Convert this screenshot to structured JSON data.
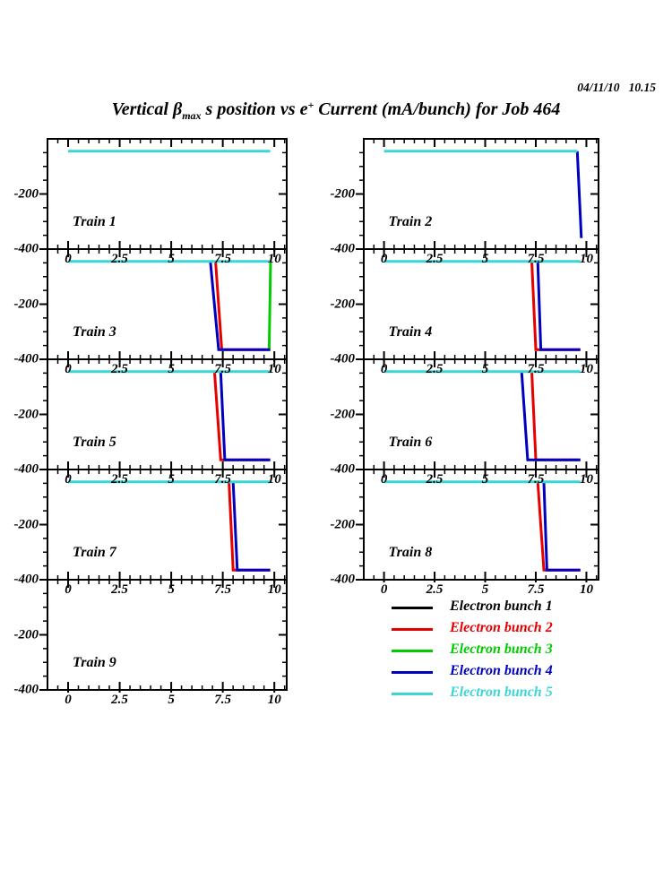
{
  "header": {
    "timestamp": "04/11/10   10.15",
    "title": {
      "part1": "Vertical β",
      "sub": "max",
      "part2": " s position vs e",
      "sup": "+",
      "part3": " Current (mA/bunch) for Job 464"
    }
  },
  "legend": {
    "items": [
      {
        "label": "Electron bunch 1",
        "color": "#000000"
      },
      {
        "label": "Electron bunch 2",
        "color": "#e60000"
      },
      {
        "label": "Electron bunch 3",
        "color": "#00cc00"
      },
      {
        "label": "Electron bunch 4",
        "color": "#0000bf"
      },
      {
        "label": "Electron bunch 5",
        "color": "#3ad6d6"
      }
    ]
  },
  "chart_data": {
    "type": "line",
    "title": "Vertical β_max s position vs e+ Current (mA/bunch) for Job 464",
    "layout": "grid of 9 stacked train panels (2 columns x 5 rows), legend in last cell",
    "x_ticks": [
      0,
      2.5,
      5,
      7.5,
      10
    ],
    "y_ticks": [
      -200,
      -400
    ],
    "xlim": [
      -1.0,
      10.6
    ],
    "ylim": [
      -400,
      0
    ],
    "x_minor_step": 0.5,
    "y_minor_step": 50,
    "grid": false,
    "series_colors": {
      "bunch1": "#000000",
      "bunch2": "#e60000",
      "bunch3": "#00cc00",
      "bunch4": "#0000bf",
      "bunch5": "#3ad6d6"
    },
    "panels": [
      {
        "label": "Train 1",
        "series": [
          {
            "name": "Electron bunch 5",
            "color": "bunch5",
            "points": [
              [
                0,
                -45
              ],
              [
                9.8,
                -45
              ]
            ]
          }
        ]
      },
      {
        "label": "Train 2",
        "series": [
          {
            "name": "Electron bunch 4",
            "color": "bunch4",
            "points": [
              [
                9.55,
                -45
              ],
              [
                9.75,
                -360
              ]
            ]
          },
          {
            "name": "Electron bunch 5",
            "color": "bunch5",
            "points": [
              [
                0,
                -45
              ],
              [
                9.55,
                -45
              ]
            ]
          }
        ]
      },
      {
        "label": "Train 3",
        "series": [
          {
            "name": "Electron bunch 2",
            "color": "bunch2",
            "points": [
              [
                7.15,
                -45
              ],
              [
                7.45,
                -365
              ],
              [
                9.8,
                -365
              ]
            ]
          },
          {
            "name": "Electron bunch 3",
            "color": "bunch3",
            "points": [
              [
                9.82,
                -45
              ],
              [
                9.75,
                -365
              ]
            ]
          },
          {
            "name": "Electron bunch 4",
            "color": "bunch4",
            "points": [
              [
                6.9,
                -45
              ],
              [
                7.3,
                -365
              ],
              [
                9.8,
                -365
              ]
            ]
          },
          {
            "name": "Electron bunch 5",
            "color": "bunch5",
            "points": [
              [
                0,
                -45
              ],
              [
                9.8,
                -45
              ]
            ]
          }
        ]
      },
      {
        "label": "Train 4",
        "series": [
          {
            "name": "Electron bunch 2",
            "color": "bunch2",
            "points": [
              [
                7.3,
                -45
              ],
              [
                7.5,
                -365
              ],
              [
                9.7,
                -365
              ]
            ]
          },
          {
            "name": "Electron bunch 4",
            "color": "bunch4",
            "points": [
              [
                7.6,
                -45
              ],
              [
                7.75,
                -365
              ],
              [
                9.7,
                -365
              ]
            ]
          },
          {
            "name": "Electron bunch 5",
            "color": "bunch5",
            "points": [
              [
                0,
                -45
              ],
              [
                9.7,
                -45
              ]
            ]
          }
        ]
      },
      {
        "label": "Train 5",
        "series": [
          {
            "name": "Electron bunch 2",
            "color": "bunch2",
            "points": [
              [
                7.1,
                -45
              ],
              [
                7.4,
                -365
              ],
              [
                9.8,
                -365
              ]
            ]
          },
          {
            "name": "Electron bunch 4",
            "color": "bunch4",
            "points": [
              [
                7.4,
                -45
              ],
              [
                7.6,
                -365
              ],
              [
                9.8,
                -365
              ]
            ]
          },
          {
            "name": "Electron bunch 5",
            "color": "bunch5",
            "points": [
              [
                0,
                -45
              ],
              [
                9.8,
                -45
              ]
            ]
          }
        ]
      },
      {
        "label": "Train 6",
        "series": [
          {
            "name": "Electron bunch 2",
            "color": "bunch2",
            "points": [
              [
                7.3,
                -45
              ],
              [
                7.5,
                -365
              ],
              [
                9.7,
                -365
              ]
            ]
          },
          {
            "name": "Electron bunch 4",
            "color": "bunch4",
            "points": [
              [
                6.8,
                -45
              ],
              [
                7.1,
                -365
              ],
              [
                9.7,
                -365
              ]
            ]
          },
          {
            "name": "Electron bunch 5",
            "color": "bunch5",
            "points": [
              [
                0,
                -45
              ],
              [
                9.7,
                -45
              ]
            ]
          }
        ]
      },
      {
        "label": "Train 7",
        "series": [
          {
            "name": "Electron bunch 2",
            "color": "bunch2",
            "points": [
              [
                7.8,
                -45
              ],
              [
                8.0,
                -365
              ],
              [
                9.8,
                -365
              ]
            ]
          },
          {
            "name": "Electron bunch 4",
            "color": "bunch4",
            "points": [
              [
                8.0,
                -45
              ],
              [
                8.2,
                -365
              ],
              [
                9.8,
                -365
              ]
            ]
          },
          {
            "name": "Electron bunch 5",
            "color": "bunch5",
            "points": [
              [
                0,
                -45
              ],
              [
                9.8,
                -45
              ]
            ]
          }
        ]
      },
      {
        "label": "Train 8",
        "series": [
          {
            "name": "Electron bunch 2",
            "color": "bunch2",
            "points": [
              [
                7.6,
                -45
              ],
              [
                7.9,
                -365
              ],
              [
                9.7,
                -365
              ]
            ]
          },
          {
            "name": "Electron bunch 4",
            "color": "bunch4",
            "points": [
              [
                7.9,
                -45
              ],
              [
                8.05,
                -365
              ],
              [
                9.7,
                -365
              ]
            ]
          },
          {
            "name": "Electron bunch 5",
            "color": "bunch5",
            "points": [
              [
                0,
                -45
              ],
              [
                9.7,
                -45
              ]
            ]
          }
        ]
      },
      {
        "label": "Train 9",
        "series": []
      }
    ]
  }
}
